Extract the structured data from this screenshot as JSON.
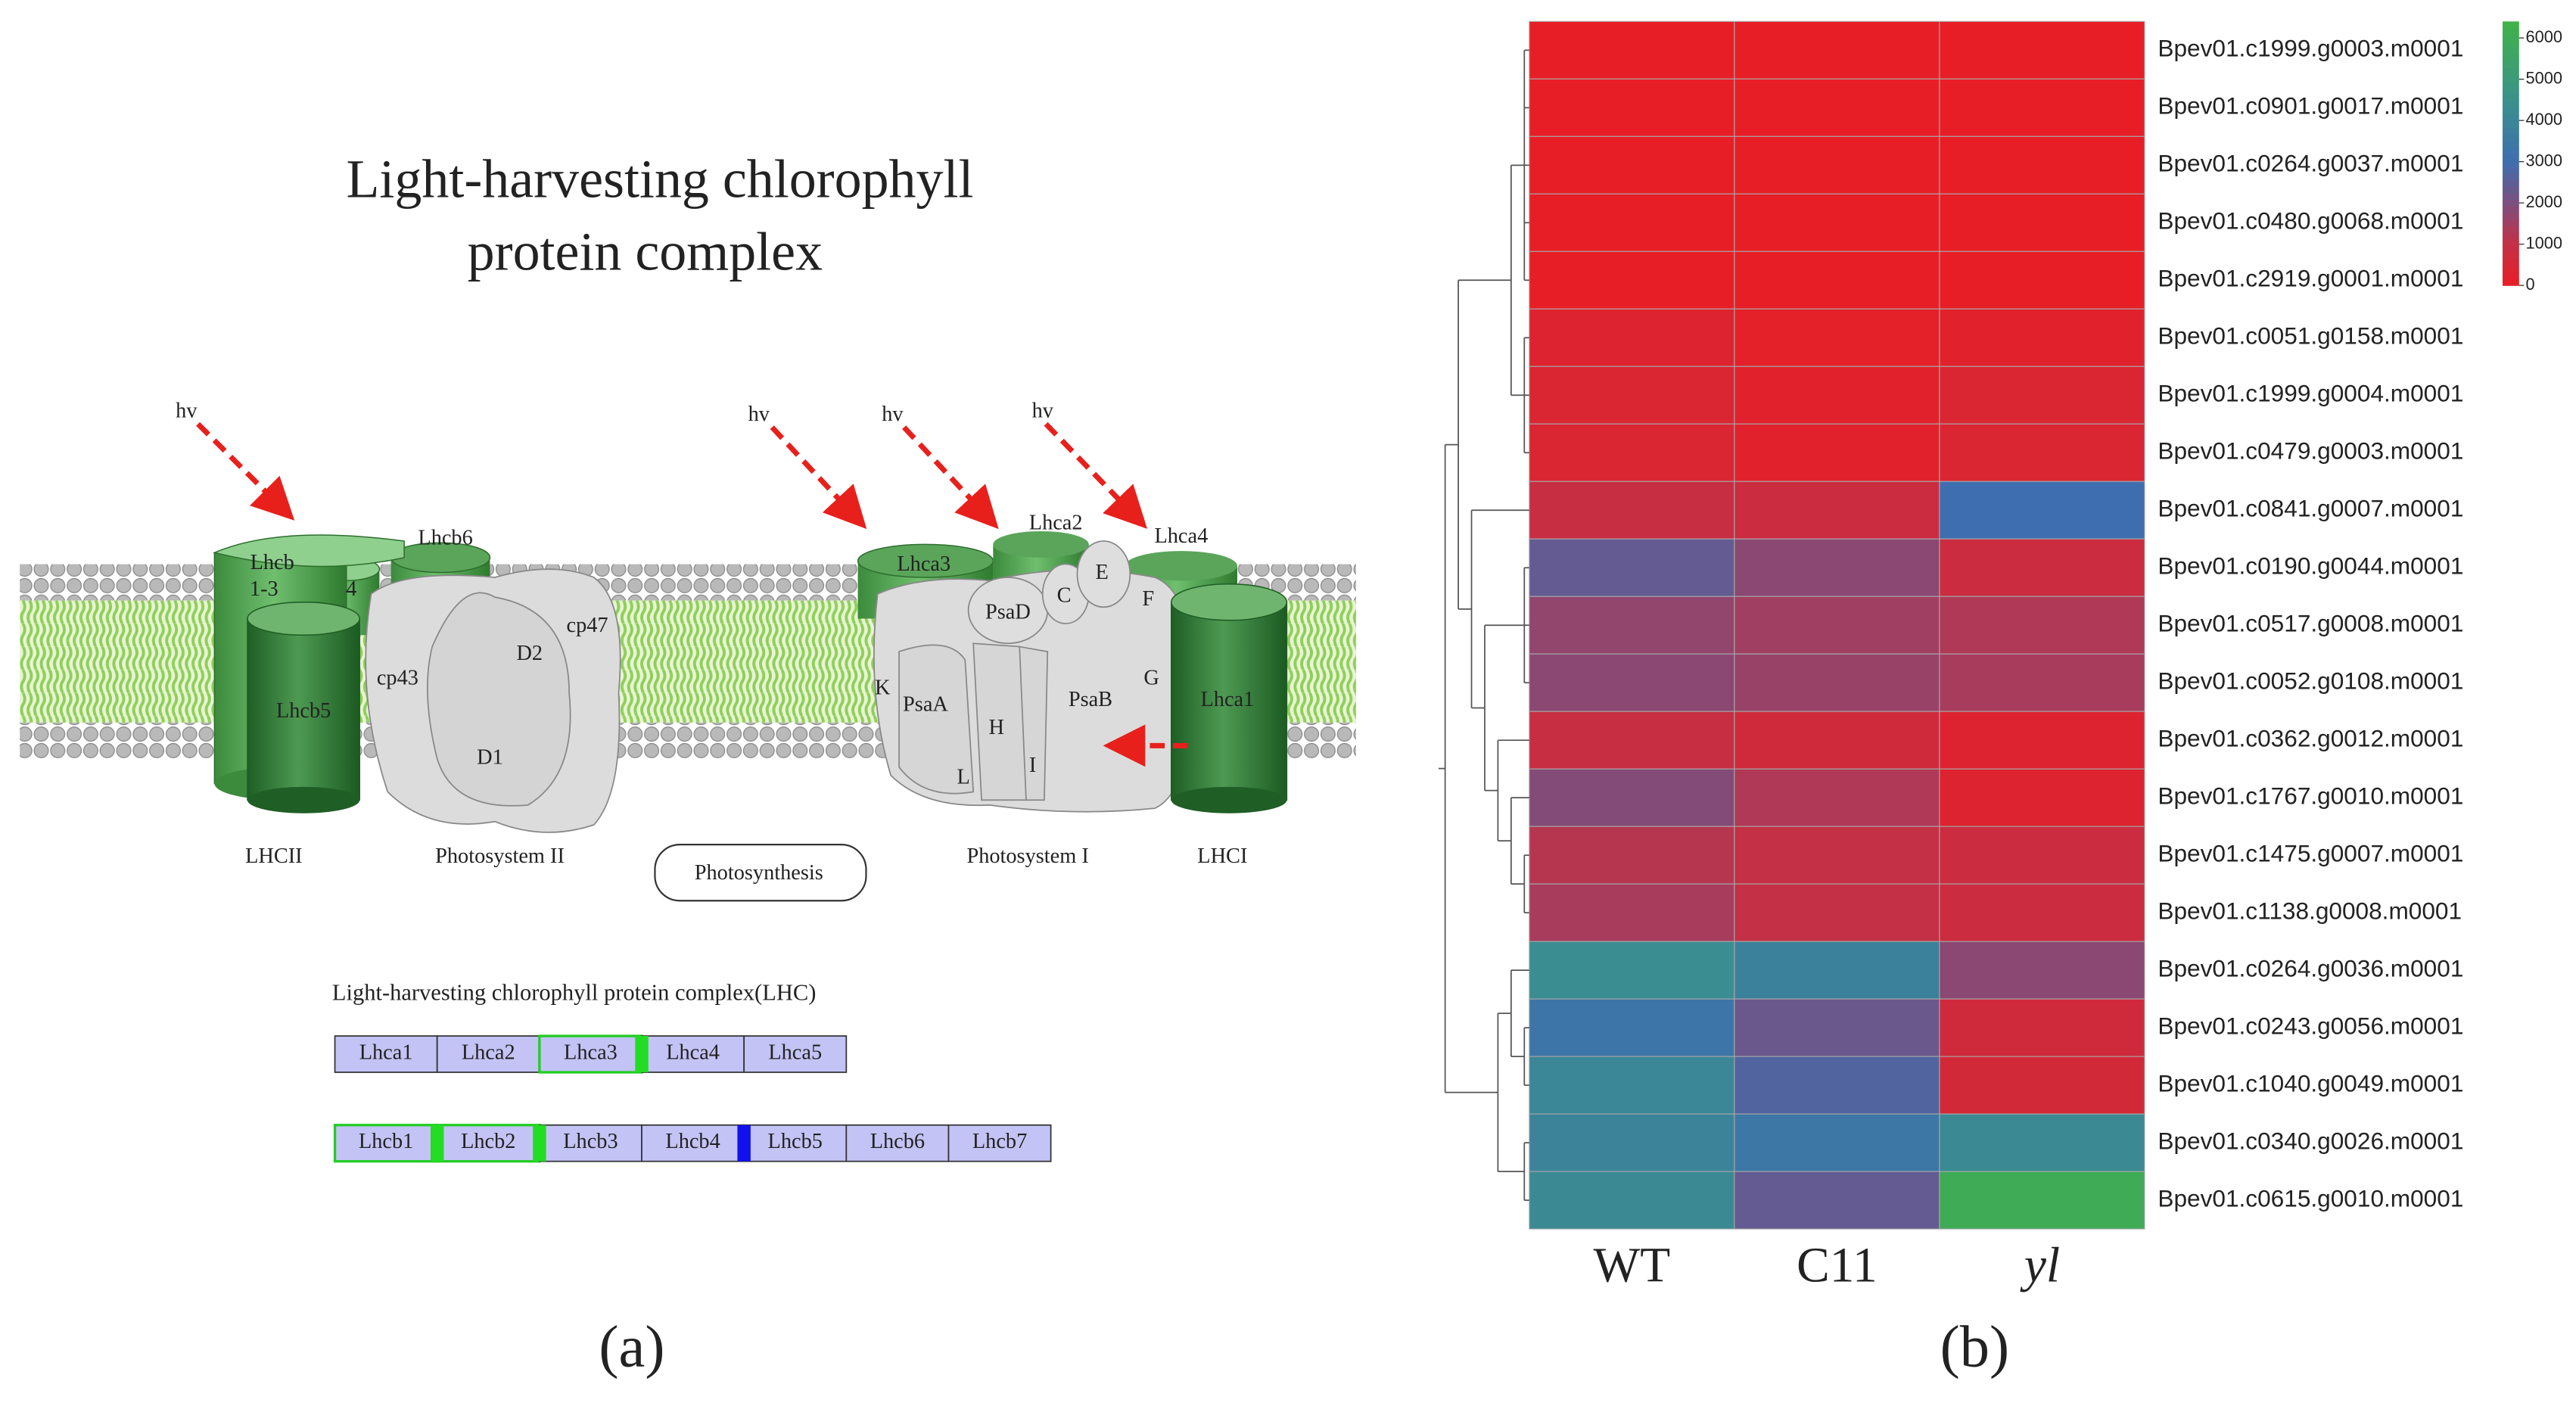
{
  "panel_labels": [
    "(a)",
    "(b)"
  ],
  "diagram": {
    "title_lines": [
      "Light-harvesting chlorophyll",
      "protein complex"
    ],
    "labels": [
      "hv",
      "hv",
      "hv",
      "hv",
      "Lhcb",
      "1-3",
      "Lhcb6",
      "4",
      "Lhcb5",
      "cp43",
      "D2",
      "D1",
      "cp47",
      "Lhca3",
      "Lhca2",
      "Lhca4",
      "Lhca1",
      "PsaD",
      "C",
      "E",
      "F",
      "K",
      "PsaA",
      "H",
      "L",
      "I",
      "PsaB",
      "G",
      "LHCII",
      "Photosystem II",
      "Photosynthesis",
      "Photosystem I",
      "LHCI"
    ],
    "legend_title": "Light-harvesting chlorophyll protein complex(LHC)",
    "lhca": [
      "Lhca1",
      "Lhca2",
      "Lhca3",
      "Lhca4",
      "Lhca5"
    ],
    "lhcb": [
      "Lhcb1",
      "Lhcb2",
      "Lhcb3",
      "Lhcb4",
      "Lhcb5",
      "Lhcb6",
      "Lhcb7"
    ]
  },
  "chart_data": {
    "type": "heatmap",
    "columns": [
      "WT",
      "C11",
      "yl"
    ],
    "rows": [
      "Bpev01.c1999.g0003.m0001",
      "Bpev01.c0901.g0017.m0001",
      "Bpev01.c0264.g0037.m0001",
      "Bpev01.c0480.g0068.m0001",
      "Bpev01.c2919.g0001.m0001",
      "Bpev01.c0051.g0158.m0001",
      "Bpev01.c1999.g0004.m0001",
      "Bpev01.c0479.g0003.m0001",
      "Bpev01.c0841.g0007.m0001",
      "Bpev01.c0190.g0044.m0001",
      "Bpev01.c0517.g0008.m0001",
      "Bpev01.c0052.g0108.m0001",
      "Bpev01.c0362.g0012.m0001",
      "Bpev01.c1767.g0010.m0001",
      "Bpev01.c1475.g0007.m0001",
      "Bpev01.c1138.g0008.m0001",
      "Bpev01.c0264.g0036.m0001",
      "Bpev01.c0243.g0056.m0001",
      "Bpev01.c1040.g0049.m0001",
      "Bpev01.c0340.g0026.m0001",
      "Bpev01.c0615.g0010.m0001"
    ],
    "values": [
      [
        0,
        0,
        0
      ],
      [
        0,
        0,
        0
      ],
      [
        0,
        0,
        0
      ],
      [
        0,
        0,
        0
      ],
      [
        0,
        0,
        0
      ],
      [
        300,
        100,
        200
      ],
      [
        400,
        200,
        400
      ],
      [
        400,
        200,
        400
      ],
      [
        900,
        800,
        3000
      ],
      [
        2400,
        1800,
        800
      ],
      [
        1700,
        1500,
        1300
      ],
      [
        1800,
        1600,
        1400
      ],
      [
        900,
        700,
        300
      ],
      [
        1900,
        1300,
        300
      ],
      [
        1200,
        1000,
        800
      ],
      [
        1400,
        1000,
        800
      ],
      [
        4300,
        3800,
        1800
      ],
      [
        3300,
        2300,
        700
      ],
      [
        4000,
        2700,
        600
      ],
      [
        3900,
        3400,
        4200
      ],
      [
        4200,
        2400,
        6000
      ]
    ],
    "clim": [
      0,
      6400
    ],
    "colorbar_ticks": [
      0,
      1000,
      2000,
      3000,
      4000,
      5000,
      6000
    ]
  }
}
